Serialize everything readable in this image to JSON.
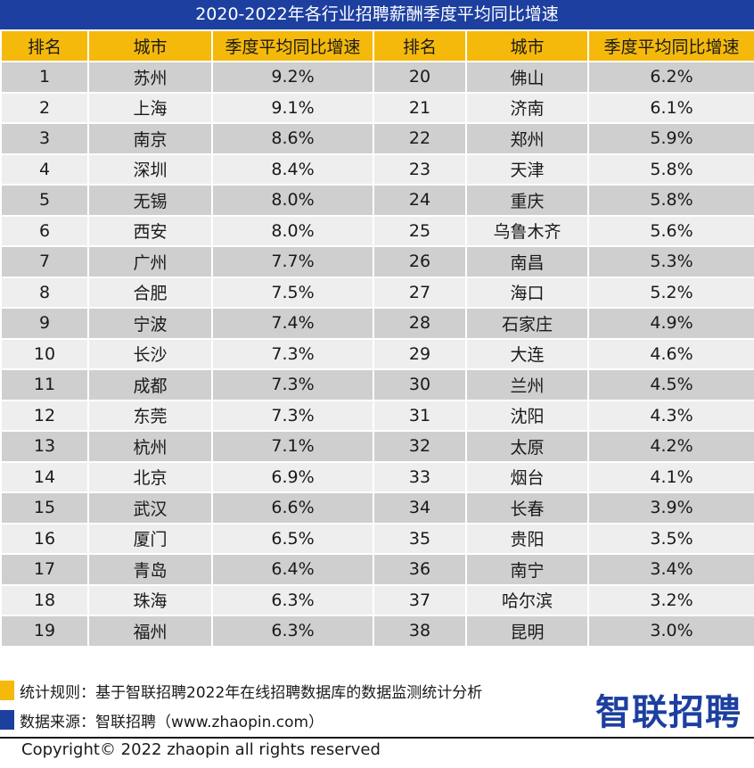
{
  "title": "2020-2022年各行业招聘薪酬季度平均同比增速",
  "table": {
    "headers": [
      "排名",
      "城市",
      "季度平均同比增速",
      "排名",
      "城市",
      "季度平均同比增速"
    ],
    "rows": [
      [
        "1",
        "苏州",
        "9.2%",
        "20",
        "佛山",
        "6.2%"
      ],
      [
        "2",
        "上海",
        "9.1%",
        "21",
        "济南",
        "6.1%"
      ],
      [
        "3",
        "南京",
        "8.6%",
        "22",
        "郑州",
        "5.9%"
      ],
      [
        "4",
        "深圳",
        "8.4%",
        "23",
        "天津",
        "5.8%"
      ],
      [
        "5",
        "无锡",
        "8.0%",
        "24",
        "重庆",
        "5.8%"
      ],
      [
        "6",
        "西安",
        "8.0%",
        "25",
        "乌鲁木齐",
        "5.6%"
      ],
      [
        "7",
        "广州",
        "7.7%",
        "26",
        "南昌",
        "5.3%"
      ],
      [
        "8",
        "合肥",
        "7.5%",
        "27",
        "海口",
        "5.2%"
      ],
      [
        "9",
        "宁波",
        "7.4%",
        "28",
        "石家庄",
        "4.9%"
      ],
      [
        "10",
        "长沙",
        "7.3%",
        "29",
        "大连",
        "4.6%"
      ],
      [
        "11",
        "成都",
        "7.3%",
        "30",
        "兰州",
        "4.5%"
      ],
      [
        "12",
        "东莞",
        "7.3%",
        "31",
        "沈阳",
        "4.3%"
      ],
      [
        "13",
        "杭州",
        "7.1%",
        "32",
        "太原",
        "4.2%"
      ],
      [
        "14",
        "北京",
        "6.9%",
        "33",
        "烟台",
        "4.1%"
      ],
      [
        "15",
        "武汉",
        "6.6%",
        "34",
        "长春",
        "3.9%"
      ],
      [
        "16",
        "厦门",
        "6.5%",
        "35",
        "贵阳",
        "3.5%"
      ],
      [
        "17",
        "青岛",
        "6.4%",
        "36",
        "南宁",
        "3.4%"
      ],
      [
        "18",
        "珠海",
        "6.3%",
        "37",
        "哈尔滨",
        "3.2%"
      ],
      [
        "19",
        "福州",
        "6.3%",
        "38",
        "昆明",
        "3.0%"
      ]
    ]
  },
  "notes": {
    "rule": "统计规则：基于智联招聘2022年在线招聘数据库的数据监测统计分析",
    "source": "数据来源：智联招聘（www.zhaopin.com）"
  },
  "logo_text": "智联招聘",
  "copyright": "Copyright© 2022 zhaopin all rights reserved",
  "colors": {
    "title_bg": "#1d3fa0",
    "header_bg": "#f5b90b",
    "row_dark": "#cfcfcf",
    "row_light": "#eeeeee",
    "legend_gold": "#f5b90b",
    "legend_blue": "#1d3fa0"
  }
}
